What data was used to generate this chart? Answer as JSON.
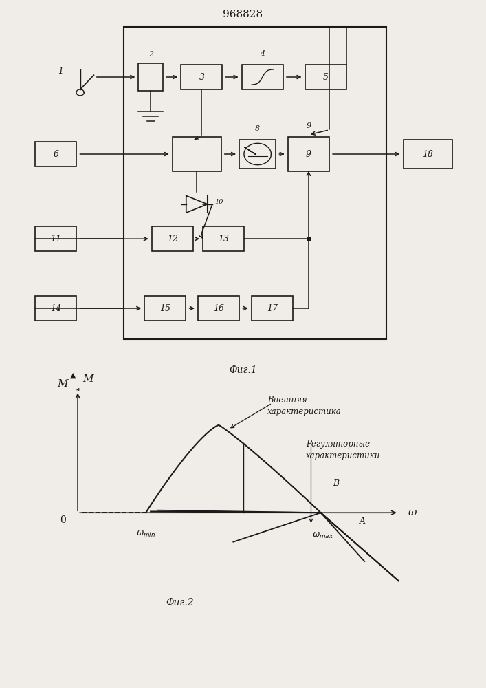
{
  "title": "968828",
  "fig1_caption": "Фиг.1",
  "fig2_caption": "Фиг.2",
  "bg_color": "#f0ede8",
  "line_color": "#1a1a1a",
  "annotation1": "Внешняя\nхарактеристика",
  "annotation2": "Регуляторные\nхарактеристики"
}
